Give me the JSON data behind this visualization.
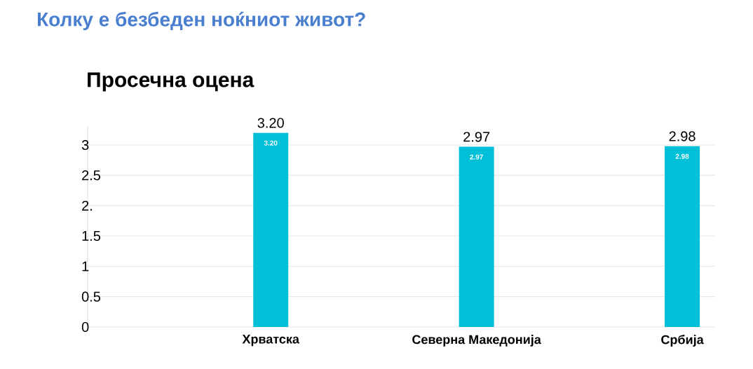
{
  "chart_data": {
    "type": "bar",
    "title": "Колку е безбеден ноќниот живот?",
    "subtitle": "Просечна оцена",
    "categories": [
      "Хрватска",
      "Северна Македонија",
      "Србија"
    ],
    "values": [
      3.2,
      2.97,
      2.98
    ],
    "value_labels": [
      "3.20",
      "2.97",
      "2.98"
    ],
    "color": "#00bfd8",
    "ylim": [
      0,
      3.3
    ],
    "yticks": [
      0,
      0.5,
      1,
      1.5,
      {
        "value": 2,
        "label": "2."
      },
      2.5,
      3
    ],
    "grid": "y"
  }
}
